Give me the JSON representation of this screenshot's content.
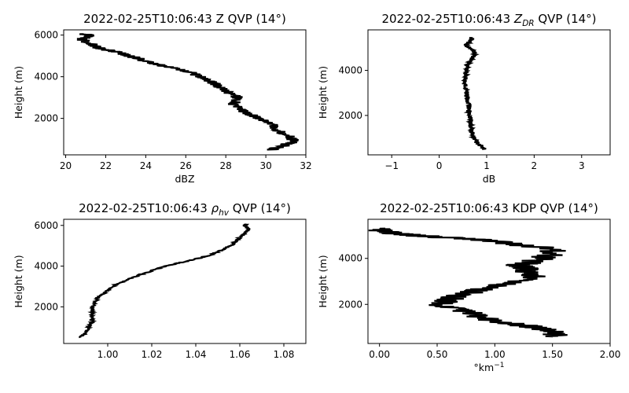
{
  "chart_data": [
    {
      "type": "line",
      "title": "2022-02-25T10:06:43 Z QVP (14°)",
      "title_parts": [
        "2022-02-25T10:06:43 Z QVP (14°)"
      ],
      "xlabel": "dBZ",
      "ylabel": "Height (m)",
      "xlim": [
        19.9,
        32.0
      ],
      "ylim": [
        250,
        6250
      ],
      "xticks": [
        20,
        22,
        24,
        26,
        28,
        30,
        32
      ],
      "yticks": [
        2000,
        4000,
        6000
      ],
      "noise": 0.3,
      "series": [
        {
          "x": [
            30.3,
            30.9,
            31.4,
            31.2,
            30.8,
            30.5,
            30.3,
            30.0,
            29.4,
            29.0,
            28.6,
            28.4,
            28.6,
            28.5,
            28.0,
            27.7,
            27.4,
            27.0,
            26.5,
            26.0,
            25.0,
            24.2,
            23.5,
            23.0,
            22.5,
            22.0,
            21.6,
            21.3,
            21.0,
            20.8,
            21.0,
            21.2,
            20.9
          ],
          "y": [
            500,
            700,
            900,
            1100,
            1300,
            1500,
            1700,
            1900,
            2100,
            2300,
            2500,
            2700,
            2900,
            3100,
            3300,
            3500,
            3700,
            3900,
            4100,
            4300,
            4500,
            4700,
            4900,
            5050,
            5200,
            5300,
            5400,
            5550,
            5700,
            5800,
            5900,
            6000,
            6050
          ]
        }
      ]
    },
    {
      "type": "line",
      "title": "2022-02-25T10:06:43 Z_DR QVP (14°)",
      "title_parts": [
        "2022-02-25T10:06:43 ",
        "Z",
        "DR",
        " QVP (14°)"
      ],
      "xlabel": "dB",
      "ylabel": "Height (m)",
      "xlim": [
        -1.5,
        3.6
      ],
      "ylim": [
        250,
        5800
      ],
      "xticks": [
        -1,
        0,
        1,
        2,
        3
      ],
      "yticks": [
        2000,
        4000
      ],
      "noise": 0.05,
      "series": [
        {
          "x": [
            0.95,
            0.9,
            0.8,
            0.72,
            0.7,
            0.68,
            0.66,
            0.65,
            0.63,
            0.62,
            0.62,
            0.6,
            0.58,
            0.58,
            0.56,
            0.55,
            0.55,
            0.56,
            0.58,
            0.6,
            0.65,
            0.72,
            0.75,
            0.7,
            0.65,
            0.55,
            0.6,
            0.65,
            0.7,
            0.65
          ],
          "y": [
            500,
            650,
            800,
            1000,
            1200,
            1400,
            1600,
            1800,
            2000,
            2200,
            2400,
            2600,
            2800,
            3000,
            3200,
            3400,
            3600,
            3800,
            4000,
            4200,
            4400,
            4600,
            4800,
            4900,
            5000,
            5100,
            5200,
            5300,
            5400,
            5450
          ]
        }
      ]
    },
    {
      "type": "line",
      "title": "2022-02-25T10:06:43 ρ_hv QVP (14°)",
      "title_parts": [
        "2022-02-25T10:06:43 ",
        "ρ",
        "hv",
        " QVP (14°)"
      ],
      "xlabel": "",
      "ylabel": "Height (m)",
      "xlim": [
        0.98,
        1.09
      ],
      "ylim": [
        200,
        6300
      ],
      "xticks": [
        1.0,
        1.02,
        1.04,
        1.06,
        1.08
      ],
      "yticks": [
        2000,
        4000,
        6000
      ],
      "noise": 0.0008,
      "series": [
        {
          "x": [
            0.987,
            0.99,
            0.991,
            0.992,
            0.993,
            0.993,
            0.993,
            0.994,
            0.996,
            1.0,
            1.004,
            1.01,
            1.018,
            1.026,
            1.034,
            1.042,
            1.048,
            1.052,
            1.056,
            1.058,
            1.06,
            1.062,
            1.064,
            1.063,
            1.062,
            1.063
          ],
          "y": [
            500,
            700,
            900,
            1100,
            1300,
            1600,
            1900,
            2200,
            2500,
            2800,
            3100,
            3400,
            3700,
            4000,
            4200,
            4400,
            4600,
            4800,
            5000,
            5200,
            5400,
            5600,
            5800,
            5900,
            6000,
            6050
          ]
        }
      ]
    },
    {
      "type": "line",
      "title": "2022-02-25T10:06:43 KDP QVP (14°)",
      "title_parts": [
        "2022-02-25T10:06:43 KDP QVP (14°)"
      ],
      "xlabel": "°km⁻¹",
      "ylabel": "Height (m)",
      "xlim": [
        -0.1,
        2.0
      ],
      "ylim": [
        300,
        5700
      ],
      "xticks": [
        0.0,
        0.5,
        1.0,
        1.5,
        2.0
      ],
      "yticks": [
        2000,
        4000
      ],
      "noise": 0.12,
      "series": [
        {
          "x": [
            1.55,
            1.5,
            1.35,
            1.1,
            0.9,
            0.8,
            0.7,
            0.5,
            0.6,
            0.7,
            0.85,
            1.0,
            1.2,
            1.35,
            1.3,
            1.25,
            1.2,
            1.3,
            1.4,
            1.5,
            1.5,
            1.2,
            0.9,
            0.6,
            0.3,
            0.1,
            0.02,
            0.05
          ],
          "y": [
            600,
            800,
            1000,
            1200,
            1400,
            1600,
            1800,
            2000,
            2200,
            2400,
            2600,
            2800,
            3000,
            3200,
            3400,
            3600,
            3700,
            3800,
            4000,
            4200,
            4400,
            4600,
            4800,
            4900,
            5000,
            5100,
            5200,
            5300
          ]
        }
      ]
    }
  ]
}
